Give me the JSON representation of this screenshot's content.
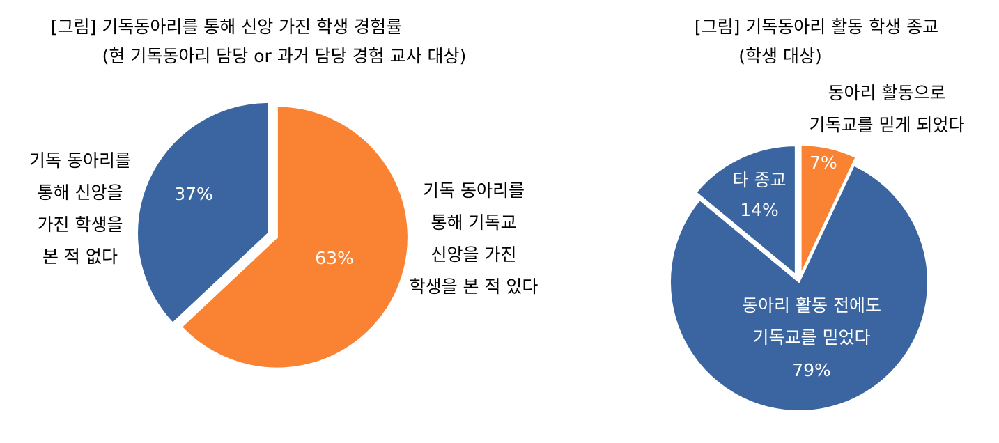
{
  "chart_data": [
    {
      "type": "pie",
      "title": "[그림] 기독동아리를 통해 신앙 가진 학생 경험률",
      "subtitle": "(현 기독동아리 담당 or 과거 담당 경험 교사 대상)",
      "categories": [
        "기독 동아리를\n통해 기독교\n신앙을 가진\n학생을 본 적 있다",
        "기독 동아리를\n통해 신앙을\n가진 학생을\n본 적 없다"
      ],
      "values": [
        63,
        37
      ],
      "value_labels": [
        "63%",
        "37%"
      ],
      "colors": [
        "#fa8233",
        "#3a65a0"
      ]
    },
    {
      "type": "pie",
      "title": "[그림] 기독동아리 활동 학생 종교",
      "subtitle": "(학생 대상)",
      "categories": [
        "동아리 활동으로\n기독교를 믿게 되었다",
        "동아리 활동 전에도\n기독교를 믿었다",
        "타 종교"
      ],
      "values": [
        7,
        79,
        14
      ],
      "value_labels": [
        "7%",
        "79%",
        "14%"
      ],
      "colors": [
        "#fa8233",
        "#3a65a0",
        "#3a65a0"
      ]
    }
  ]
}
